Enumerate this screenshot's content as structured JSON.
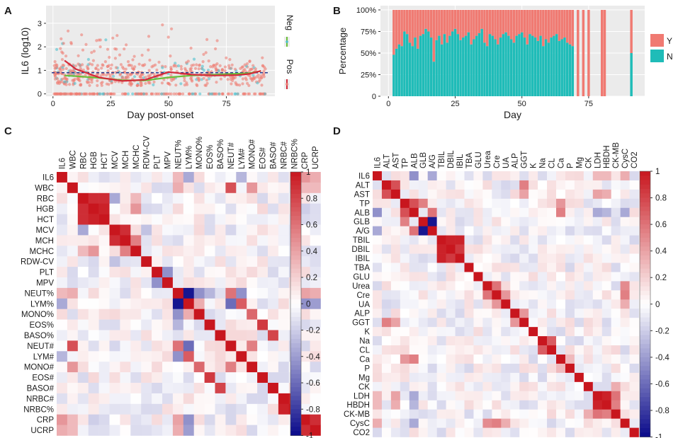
{
  "colors": {
    "neg_point": "#4fc1cf",
    "pos_point": "#ee7e74",
    "neg_line": "#6abf3a",
    "pos_line": "#d42a3a",
    "bar_Y": "#f07a72",
    "bar_N": "#1fbcb8",
    "heat_high": "#c8161e",
    "heat_mid": "#ffffff",
    "heat_low": "#0a0a8a",
    "ref_line": "#2b3a8f"
  },
  "chart_data": [
    {
      "panel": "A",
      "type": "scatter",
      "xlabel": "Day post-onset",
      "ylabel": "IL6 (log10)",
      "xlim": [
        -3,
        96
      ],
      "ylim": [
        -0.1,
        3.75
      ],
      "xticks": [
        "0",
        "25",
        "50",
        "75"
      ],
      "yticks": [
        "0",
        "1",
        "2",
        "3"
      ],
      "reference_y": 0.9,
      "legend": [
        "Neg",
        "Pos"
      ],
      "neg_trend": {
        "x": [
          5,
          10,
          20,
          30,
          40,
          50,
          60,
          70,
          80,
          85,
          90
        ],
        "y": [
          0.78,
          0.75,
          0.68,
          0.58,
          0.57,
          0.7,
          0.78,
          0.82,
          0.86,
          0.88,
          0.97
        ]
      },
      "pos_trend": {
        "x": [
          5,
          10,
          20,
          30,
          40,
          50,
          60,
          70,
          80,
          85,
          90
        ],
        "y": [
          1.42,
          1.05,
          0.7,
          0.55,
          0.6,
          0.93,
          0.82,
          0.78,
          0.8,
          0.85,
          0.98
        ]
      }
    },
    {
      "panel": "B",
      "type": "bar",
      "stacked": true,
      "xlabel": "Day",
      "ylabel": "Percentage",
      "xlim": [
        -3,
        96
      ],
      "ylim": [
        0,
        100
      ],
      "xticks": [
        "0",
        "25",
        "50",
        "75"
      ],
      "yticks": [
        "0",
        "25%",
        "50%",
        "75%",
        "100%"
      ],
      "legend": [
        "Y",
        "N"
      ],
      "days": [
        2,
        3,
        4,
        5,
        6,
        7,
        8,
        9,
        10,
        11,
        12,
        13,
        14,
        15,
        16,
        17,
        18,
        19,
        20,
        21,
        22,
        23,
        24,
        25,
        26,
        27,
        28,
        29,
        30,
        31,
        32,
        33,
        34,
        35,
        36,
        37,
        38,
        39,
        40,
        41,
        42,
        43,
        44,
        45,
        46,
        47,
        48,
        49,
        50,
        51,
        52,
        53,
        54,
        55,
        56,
        57,
        58,
        59,
        60,
        61,
        62,
        63,
        64,
        65,
        66,
        67,
        68,
        69,
        71,
        73,
        75,
        80,
        81,
        91
      ],
      "N_percent": [
        48,
        55,
        60,
        58,
        75,
        72,
        62,
        58,
        68,
        55,
        70,
        72,
        78,
        75,
        68,
        40,
        65,
        70,
        60,
        72,
        62,
        70,
        75,
        78,
        72,
        65,
        68,
        70,
        74,
        60,
        66,
        70,
        73,
        78,
        62,
        58,
        72,
        70,
        66,
        60,
        68,
        72,
        74,
        70,
        66,
        62,
        70,
        72,
        74,
        68,
        60,
        72,
        70,
        68,
        64,
        70,
        58,
        66,
        62,
        68,
        70,
        72,
        64,
        66,
        68,
        62,
        60,
        58,
        0,
        0,
        0,
        0,
        0,
        50
      ]
    },
    {
      "panel": "C",
      "type": "heatmap",
      "labels": [
        "IL6",
        "WBC",
        "RBC",
        "HGB",
        "HCT",
        "MCV",
        "MCH",
        "MCHC",
        "RDW-CV",
        "PLT",
        "MPV",
        "NEUT%",
        "LYM%",
        "MONO%",
        "EOS%",
        "BASO%",
        "NEUT#",
        "LYM#",
        "MONO#",
        "EOS#",
        "BASO#",
        "NRBC#",
        "NRBC%",
        "CRP",
        "UCRP"
      ],
      "colorbar_ticks": [
        "1",
        "0.8",
        "0.6",
        "0.4",
        "0.2",
        "0",
        "-0.2",
        "-0.4",
        "-0.6",
        "-0.8",
        "-1"
      ],
      "correlations": [
        [
          "WBC",
          "NEUT#",
          0.75
        ],
        [
          "WBC",
          "MONO#",
          0.45
        ],
        [
          "WBC",
          "NEUT%",
          0.35
        ],
        [
          "WBC",
          "CRP",
          0.3
        ],
        [
          "WBC",
          "UCRP",
          0.3
        ],
        [
          "RBC",
          "HGB",
          0.9
        ],
        [
          "RBC",
          "HCT",
          0.9
        ],
        [
          "HGB",
          "HCT",
          0.95
        ],
        [
          "RBC",
          "MCV",
          -0.35
        ],
        [
          "RBC",
          "MCHC",
          0.3
        ],
        [
          "HGB",
          "MCHC",
          0.45
        ],
        [
          "MCV",
          "MCH",
          0.9
        ],
        [
          "MCH",
          "MCHC",
          0.55
        ],
        [
          "MCV",
          "RDW-CV",
          -0.25
        ],
        [
          "PLT",
          "MPV",
          -0.45
        ],
        [
          "NEUT%",
          "LYM%",
          -0.95
        ],
        [
          "NEUT%",
          "MONO%",
          -0.45
        ],
        [
          "NEUT%",
          "EOS%",
          -0.3
        ],
        [
          "NEUT%",
          "NEUT#",
          0.6
        ],
        [
          "NEUT%",
          "LYM#",
          -0.45
        ],
        [
          "LYM%",
          "NEUT#",
          -0.6
        ],
        [
          "LYM%",
          "LYM#",
          0.7
        ],
        [
          "LYM%",
          "MONO%",
          0.35
        ],
        [
          "MONO%",
          "MONO#",
          0.65
        ],
        [
          "EOS%",
          "EOS#",
          0.85
        ],
        [
          "BASO%",
          "BASO#",
          0.8
        ],
        [
          "NEUT#",
          "MONO#",
          0.55
        ],
        [
          "NRBC#",
          "NRBC%",
          0.95
        ],
        [
          "CRP",
          "UCRP",
          0.9
        ],
        [
          "IL6",
          "CRP",
          0.45
        ],
        [
          "IL6",
          "UCRP",
          0.35
        ],
        [
          "IL6",
          "NEUT%",
          0.3
        ],
        [
          "IL6",
          "LYM%",
          -0.35
        ],
        [
          "IL6",
          "LYM#",
          -0.3
        ],
        [
          "CRP",
          "LYM%",
          -0.45
        ],
        [
          "CRP",
          "NEUT%",
          0.4
        ],
        [
          "UCRP",
          "LYM%",
          -0.4
        ],
        [
          "UCRP",
          "NEUT%",
          0.35
        ],
        [
          "CRP",
          "HGB",
          -0.2
        ]
      ]
    },
    {
      "panel": "D",
      "type": "heatmap",
      "labels": [
        "IL6",
        "ALT",
        "AST",
        "TP",
        "ALB",
        "GLB",
        "A/G",
        "TBIL",
        "DBIL",
        "IBIL",
        "TBA",
        "GLU",
        "Urea",
        "Cre",
        "UA",
        "ALP",
        "GGT",
        "K",
        "Na",
        "CL",
        "Ca",
        "P",
        "Mg",
        "CK",
        "LDH",
        "HBDH",
        "CK-MB",
        "CysC",
        "CO2"
      ],
      "colorbar_ticks": [
        "1",
        "0.8",
        "0.6",
        "0.4",
        "0.2",
        "0",
        "-0.2",
        "-0.4",
        "-0.6",
        "-0.8",
        "-1"
      ],
      "correlations": [
        [
          "ALT",
          "AST",
          0.75
        ],
        [
          "ALT",
          "GGT",
          0.55
        ],
        [
          "AST",
          "GGT",
          0.4
        ],
        [
          "AST",
          "LDH",
          0.4
        ],
        [
          "AST",
          "HBDH",
          0.35
        ],
        [
          "TP",
          "ALB",
          0.75
        ],
        [
          "TP",
          "GLB",
          0.55
        ],
        [
          "ALB",
          "A/G",
          0.6
        ],
        [
          "GLB",
          "A/G",
          -0.95
        ],
        [
          "ALB",
          "GLB",
          -0.1
        ],
        [
          "TBIL",
          "DBIL",
          0.95
        ],
        [
          "TBIL",
          "IBIL",
          0.95
        ],
        [
          "DBIL",
          "IBIL",
          0.85
        ],
        [
          "Urea",
          "Cre",
          0.6
        ],
        [
          "Cre",
          "UA",
          0.45
        ],
        [
          "Cre",
          "CysC",
          0.55
        ],
        [
          "Urea",
          "CysC",
          0.5
        ],
        [
          "UA",
          "CysC",
          0.35
        ],
        [
          "ALP",
          "GGT",
          0.45
        ],
        [
          "Na",
          "CL",
          0.7
        ],
        [
          "Ca",
          "ALB",
          0.55
        ],
        [
          "Ca",
          "TP",
          0.45
        ],
        [
          "Ca",
          "P",
          0.3
        ],
        [
          "LDH",
          "HBDH",
          0.95
        ],
        [
          "LDH",
          "CK-MB",
          0.6
        ],
        [
          "HBDH",
          "CK-MB",
          0.55
        ],
        [
          "CK",
          "CK-MB",
          0.35
        ],
        [
          "IL6",
          "ALB",
          -0.45
        ],
        [
          "IL6",
          "A/G",
          -0.35
        ],
        [
          "IL6",
          "CysC",
          0.35
        ],
        [
          "IL6",
          "LDH",
          0.3
        ],
        [
          "IL6",
          "HBDH",
          0.3
        ],
        [
          "IL6",
          "Na",
          -0.15
        ],
        [
          "ALB",
          "LDH",
          -0.35
        ],
        [
          "ALB",
          "HBDH",
          -0.3
        ],
        [
          "ALB",
          "CysC",
          -0.35
        ],
        [
          "CO2",
          "Cl",
          0.0
        ]
      ]
    }
  ],
  "panel_labels": [
    "A",
    "B",
    "C",
    "D"
  ]
}
